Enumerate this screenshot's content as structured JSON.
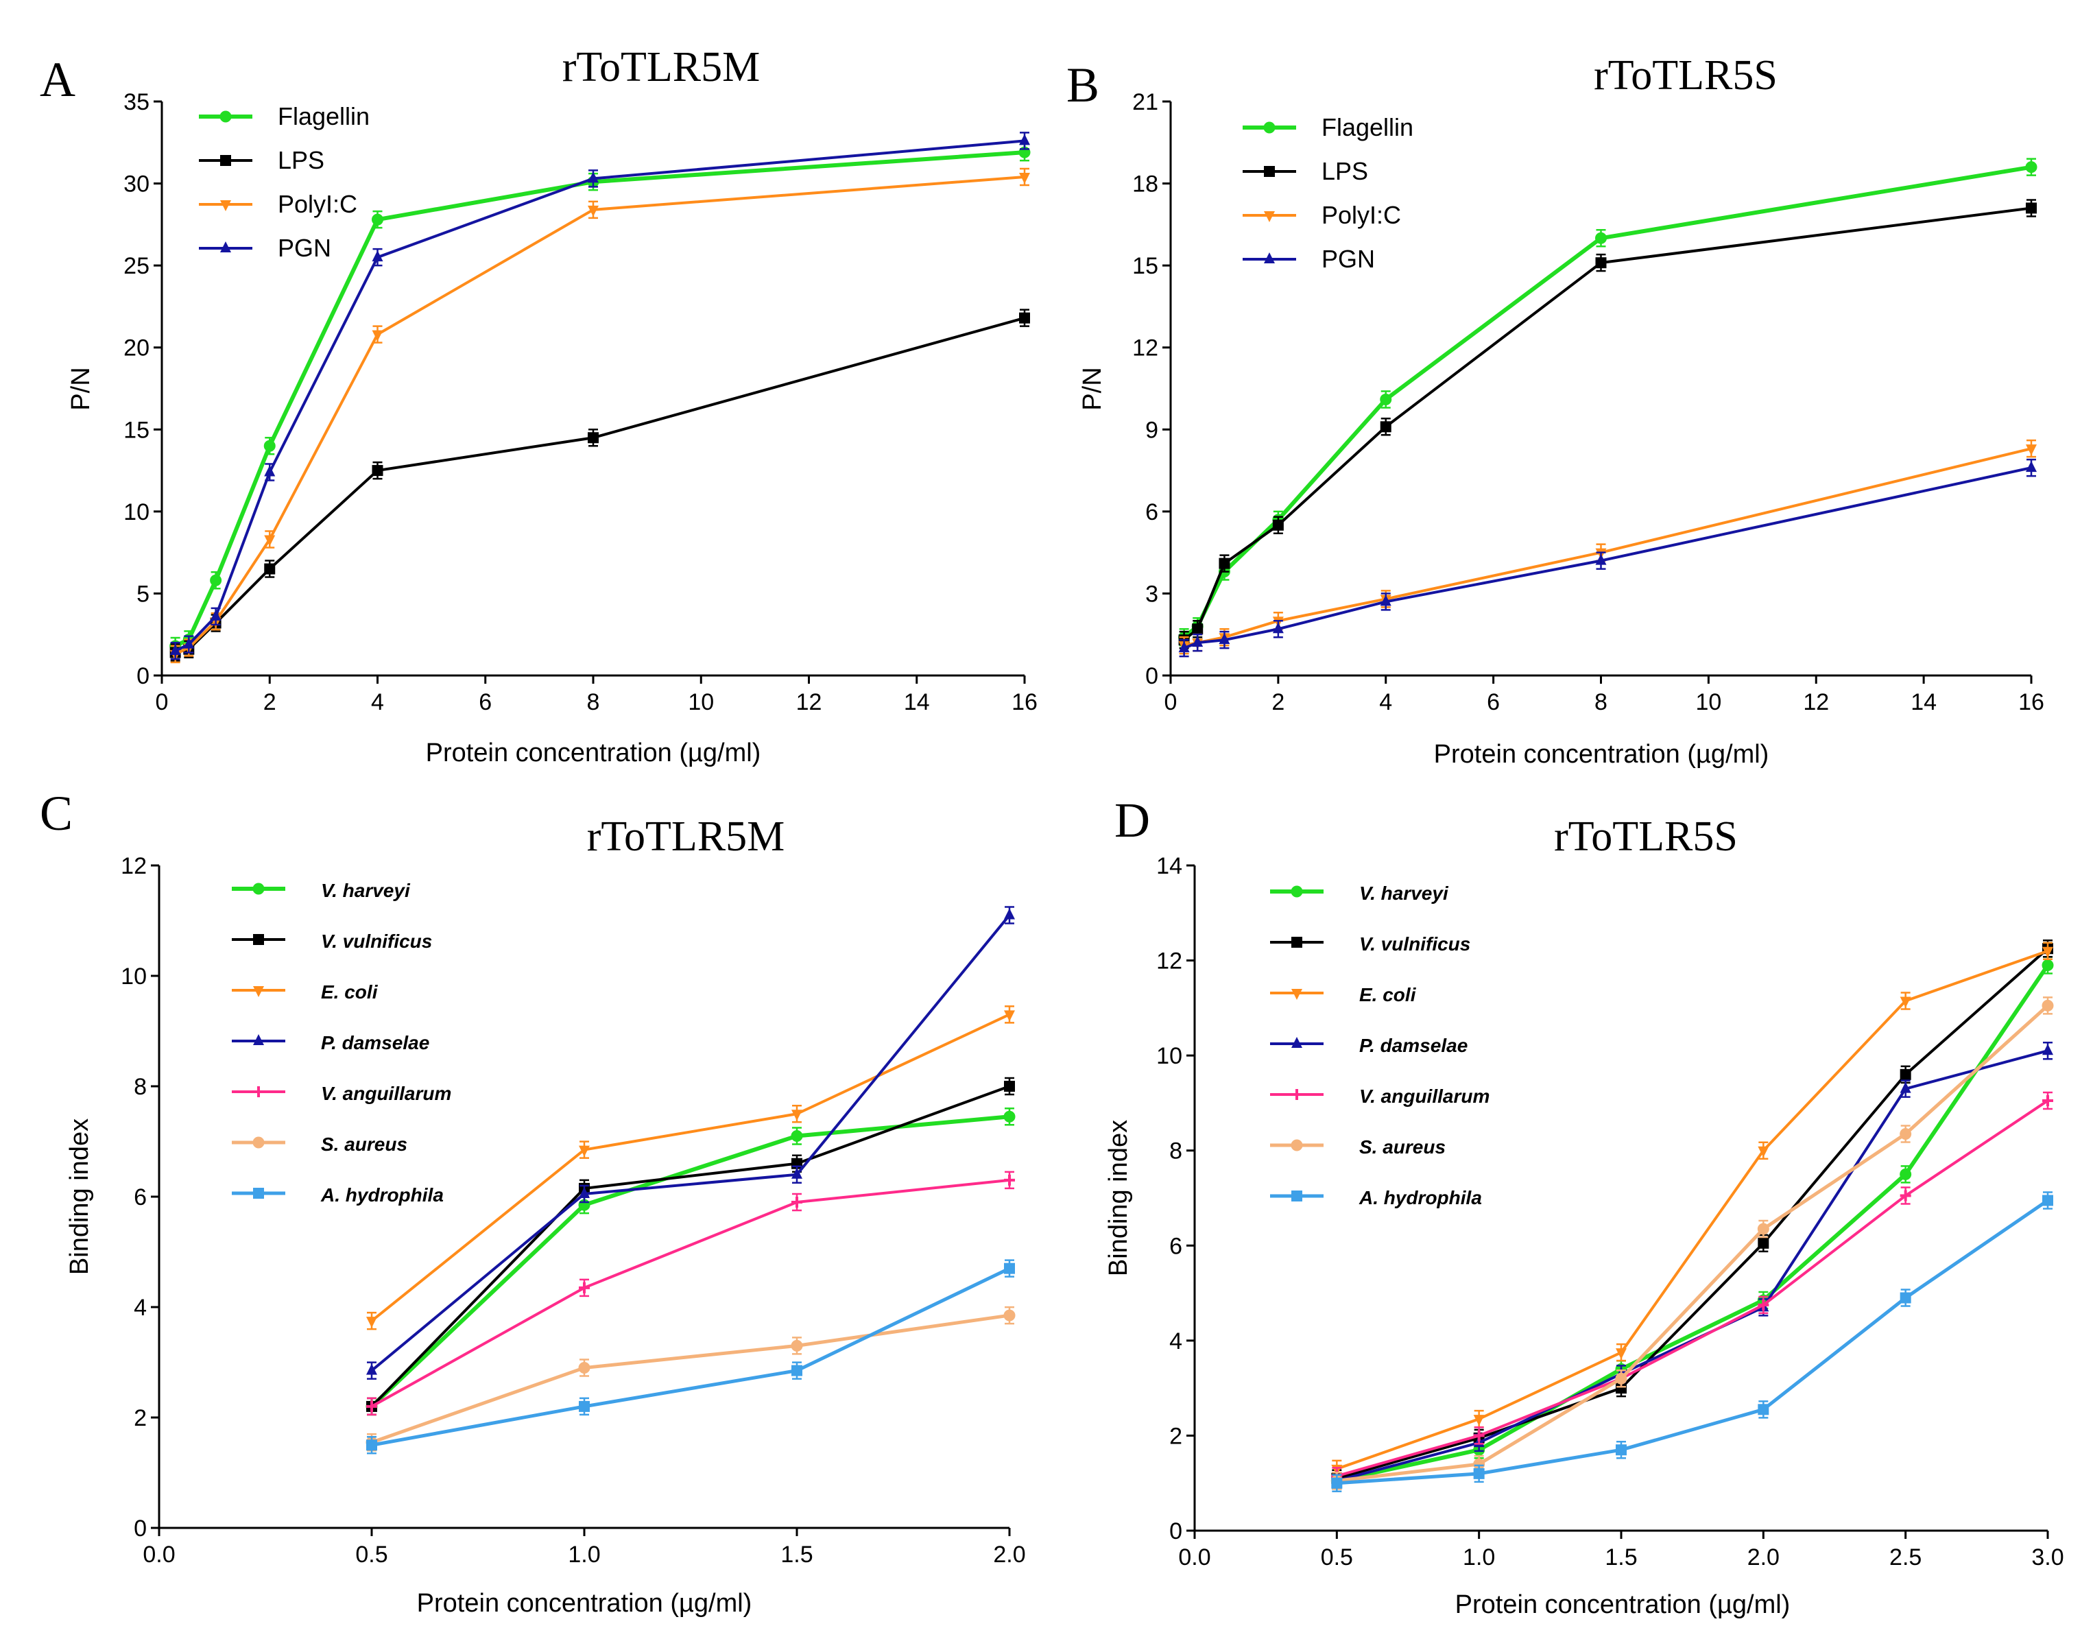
{
  "panels": [
    {
      "letter": "A",
      "title": "rToTLR5M",
      "xlabel": "Protein concentration (µg/ml)",
      "ylabel": "P/N",
      "xlim": [
        0,
        16
      ],
      "ylim": [
        0,
        35
      ],
      "xticks": [
        0,
        2,
        4,
        6,
        8,
        10,
        12,
        14,
        16
      ],
      "xtick_labels": [
        "0",
        "2",
        "4",
        "6",
        "8",
        "10",
        "12",
        "14",
        "16"
      ],
      "yticks": [
        0,
        5,
        10,
        15,
        20,
        25,
        30,
        35
      ],
      "ytick_labels": [
        "0",
        "5",
        "10",
        "15",
        "20",
        "25",
        "30",
        "35"
      ],
      "legend_style": "normal",
      "series": [
        {
          "name": "Flagellin",
          "color": "#22dd22",
          "marker": "circle",
          "width": 6,
          "x": [
            0.25,
            0.5,
            1,
            2,
            4,
            8,
            16
          ],
          "y": [
            1.8,
            2.2,
            5.8,
            14.0,
            27.8,
            30.1,
            31.9
          ]
        },
        {
          "name": "LPS",
          "color": "#000000",
          "marker": "square",
          "width": 4,
          "x": [
            0.25,
            0.5,
            1,
            2,
            4,
            8,
            16
          ],
          "y": [
            1.4,
            1.6,
            3.2,
            6.5,
            12.5,
            14.5,
            21.8
          ]
        },
        {
          "name": "PolyI:C",
          "color": "#ff8c1a",
          "marker": "tri-down",
          "width": 4,
          "x": [
            0.25,
            0.5,
            1,
            2,
            4,
            8,
            16
          ],
          "y": [
            1.3,
            1.7,
            3.3,
            8.3,
            20.8,
            28.4,
            30.4
          ]
        },
        {
          "name": "PGN",
          "color": "#1414a0",
          "marker": "tri-up",
          "width": 4,
          "x": [
            0.25,
            0.5,
            1,
            2,
            4,
            8,
            16
          ],
          "y": [
            1.5,
            1.9,
            3.6,
            12.4,
            25.5,
            30.3,
            32.6
          ]
        }
      ]
    },
    {
      "letter": "B",
      "title": "rToTLR5S",
      "xlabel": "Protein concentration (µg/ml)",
      "ylabel": "P/N",
      "xlim": [
        0,
        16
      ],
      "ylim": [
        0,
        21
      ],
      "xticks": [
        0,
        2,
        4,
        6,
        8,
        10,
        12,
        14,
        16
      ],
      "xtick_labels": [
        "0",
        "2",
        "4",
        "6",
        "8",
        "10",
        "12",
        "14",
        "16"
      ],
      "yticks": [
        0,
        3,
        6,
        9,
        12,
        15,
        18,
        21
      ],
      "ytick_labels": [
        "0",
        "3",
        "6",
        "9",
        "12",
        "15",
        "18",
        "21"
      ],
      "legend_style": "normal",
      "series": [
        {
          "name": "Flagellin",
          "color": "#22dd22",
          "marker": "circle",
          "width": 6,
          "x": [
            0.25,
            0.5,
            1,
            2,
            4,
            8,
            16
          ],
          "y": [
            1.4,
            1.8,
            3.8,
            5.7,
            10.1,
            16.0,
            18.6
          ]
        },
        {
          "name": "LPS",
          "color": "#000000",
          "marker": "square",
          "width": 4,
          "x": [
            0.25,
            0.5,
            1,
            2,
            4,
            8,
            16
          ],
          "y": [
            1.3,
            1.7,
            4.1,
            5.5,
            9.1,
            15.1,
            17.1
          ]
        },
        {
          "name": "PolyI:C",
          "color": "#ff8c1a",
          "marker": "tri-down",
          "width": 4,
          "x": [
            0.25,
            0.5,
            1,
            2,
            4,
            8,
            16
          ],
          "y": [
            1.1,
            1.2,
            1.4,
            2.0,
            2.8,
            4.5,
            8.3
          ]
        },
        {
          "name": "PGN",
          "color": "#1414a0",
          "marker": "tri-up",
          "width": 4,
          "x": [
            0.25,
            0.5,
            1,
            2,
            4,
            8,
            16
          ],
          "y": [
            1.0,
            1.2,
            1.3,
            1.7,
            2.7,
            4.2,
            7.6
          ]
        }
      ]
    },
    {
      "letter": "C",
      "title": "rToTLR5M",
      "xlabel": "Protein concentration (µg/ml)",
      "ylabel": "Binding index",
      "xlim": [
        0,
        2
      ],
      "ylim": [
        0,
        12
      ],
      "xticks": [
        0,
        0.5,
        1,
        1.5,
        2
      ],
      "xtick_labels": [
        "0.0",
        "0.5",
        "1.0",
        "1.5",
        "2.0"
      ],
      "yticks": [
        0,
        2,
        4,
        6,
        8,
        10,
        12
      ],
      "ytick_labels": [
        "0",
        "2",
        "4",
        "6",
        "8",
        "10",
        "12"
      ],
      "legend_style": "italic",
      "series": [
        {
          "name": "V. harveyi",
          "color": "#22dd22",
          "marker": "circle",
          "width": 6,
          "x": [
            0.5,
            1,
            1.5,
            2
          ],
          "y": [
            2.2,
            5.85,
            7.1,
            7.45
          ]
        },
        {
          "name": "V. vulnificus",
          "color": "#000000",
          "marker": "square",
          "width": 4,
          "x": [
            0.5,
            1,
            1.5,
            2
          ],
          "y": [
            2.2,
            6.15,
            6.6,
            8.0
          ]
        },
        {
          "name": "E. coli",
          "color": "#ff8c1a",
          "marker": "tri-down",
          "width": 4,
          "x": [
            0.5,
            1,
            1.5,
            2
          ],
          "y": [
            3.75,
            6.85,
            7.5,
            9.3
          ]
        },
        {
          "name": "P. damselae",
          "color": "#1414a0",
          "marker": "tri-up",
          "width": 4,
          "x": [
            0.5,
            1,
            1.5,
            2
          ],
          "y": [
            2.85,
            6.05,
            6.4,
            11.1
          ]
        },
        {
          "name": "V. anguillarum",
          "color": "#ff2a8a",
          "marker": "plus",
          "width": 4,
          "x": [
            0.5,
            1,
            1.5,
            2
          ],
          "y": [
            2.2,
            4.35,
            5.9,
            6.3
          ]
        },
        {
          "name": "S. aureus",
          "color": "#f5b27a",
          "marker": "circle",
          "width": 5,
          "x": [
            0.5,
            1,
            1.5,
            2
          ],
          "y": [
            1.55,
            2.9,
            3.3,
            3.85
          ]
        },
        {
          "name": "A. hydrophila",
          "color": "#3ea0e8",
          "marker": "square",
          "width": 5,
          "x": [
            0.5,
            1,
            1.5,
            2
          ],
          "y": [
            1.5,
            2.2,
            2.85,
            4.7
          ]
        }
      ]
    },
    {
      "letter": "D",
      "title": "rToTLR5S",
      "xlabel": "Protein concentration (µg/ml)",
      "ylabel": "Binding index",
      "xlim": [
        0,
        3
      ],
      "ylim": [
        0,
        14
      ],
      "xticks": [
        0,
        0.5,
        1,
        1.5,
        2,
        2.5,
        3
      ],
      "xtick_labels": [
        "0.0",
        "0.5",
        "1.0",
        "1.5",
        "2.0",
        "2.5",
        "3.0"
      ],
      "yticks": [
        0,
        2,
        4,
        6,
        8,
        10,
        12,
        14
      ],
      "ytick_labels": [
        "0",
        "2",
        "4",
        "6",
        "8",
        "10",
        "12",
        "14"
      ],
      "legend_style": "italic",
      "series": [
        {
          "name": "V. harveyi",
          "color": "#22dd22",
          "marker": "circle",
          "width": 6,
          "x": [
            0.5,
            1,
            1.5,
            2,
            2.5,
            3
          ],
          "y": [
            1.05,
            1.7,
            3.4,
            4.85,
            7.5,
            11.9
          ]
        },
        {
          "name": "V. vulnificus",
          "color": "#000000",
          "marker": "square",
          "width": 4,
          "x": [
            0.5,
            1,
            1.5,
            2,
            2.5,
            3
          ],
          "y": [
            1.1,
            1.95,
            3.0,
            6.05,
            9.6,
            12.25
          ]
        },
        {
          "name": "E. coli",
          "color": "#ff8c1a",
          "marker": "tri-down",
          "width": 4,
          "x": [
            0.5,
            1,
            1.5,
            2,
            2.5,
            3
          ],
          "y": [
            1.3,
            2.35,
            3.75,
            8.0,
            11.15,
            12.2
          ]
        },
        {
          "name": "P. damselae",
          "color": "#1414a0",
          "marker": "tri-up",
          "width": 4,
          "x": [
            0.5,
            1,
            1.5,
            2,
            2.5,
            3
          ],
          "y": [
            1.05,
            1.85,
            3.3,
            4.7,
            9.3,
            10.1
          ]
        },
        {
          "name": "V. anguillarum",
          "color": "#ff2a8a",
          "marker": "plus",
          "width": 4,
          "x": [
            0.5,
            1,
            1.5,
            2,
            2.5,
            3
          ],
          "y": [
            1.15,
            2.0,
            3.2,
            4.75,
            7.05,
            9.05
          ]
        },
        {
          "name": "S. aureus",
          "color": "#f5b27a",
          "marker": "circle",
          "width": 5,
          "x": [
            0.5,
            1,
            1.5,
            2,
            2.5,
            3
          ],
          "y": [
            1.05,
            1.4,
            3.2,
            6.35,
            8.35,
            11.05
          ]
        },
        {
          "name": "A. hydrophila",
          "color": "#3ea0e8",
          "marker": "square",
          "width": 5,
          "x": [
            0.5,
            1,
            1.5,
            2,
            2.5,
            3
          ],
          "y": [
            1.0,
            1.2,
            1.7,
            2.55,
            4.9,
            6.95
          ]
        }
      ]
    }
  ],
  "chart_data": [
    {
      "type": "line",
      "title": "rToTLR5M",
      "xlabel": "Protein concentration (µg/ml)",
      "ylabel": "P/N",
      "xlim": [
        0,
        16
      ],
      "ylim": [
        0,
        35
      ],
      "x": [
        0.25,
        0.5,
        1,
        2,
        4,
        8,
        16
      ],
      "series": [
        {
          "name": "Flagellin",
          "values": [
            1.8,
            2.2,
            5.8,
            14.0,
            27.8,
            30.1,
            31.9
          ]
        },
        {
          "name": "LPS",
          "values": [
            1.4,
            1.6,
            3.2,
            6.5,
            12.5,
            14.5,
            21.8
          ]
        },
        {
          "name": "PolyI:C",
          "values": [
            1.3,
            1.7,
            3.3,
            8.3,
            20.8,
            28.4,
            30.4
          ]
        },
        {
          "name": "PGN",
          "values": [
            1.5,
            1.9,
            3.6,
            12.4,
            25.5,
            30.3,
            32.6
          ]
        }
      ]
    },
    {
      "type": "line",
      "title": "rToTLR5S",
      "xlabel": "Protein concentration (µg/ml)",
      "ylabel": "P/N",
      "xlim": [
        0,
        16
      ],
      "ylim": [
        0,
        21
      ],
      "x": [
        0.25,
        0.5,
        1,
        2,
        4,
        8,
        16
      ],
      "series": [
        {
          "name": "Flagellin",
          "values": [
            1.4,
            1.8,
            3.8,
            5.7,
            10.1,
            16.0,
            18.6
          ]
        },
        {
          "name": "LPS",
          "values": [
            1.3,
            1.7,
            4.1,
            5.5,
            9.1,
            15.1,
            17.1
          ]
        },
        {
          "name": "PolyI:C",
          "values": [
            1.1,
            1.2,
            1.4,
            2.0,
            2.8,
            4.5,
            8.3
          ]
        },
        {
          "name": "PGN",
          "values": [
            1.0,
            1.2,
            1.3,
            1.7,
            2.7,
            4.2,
            7.6
          ]
        }
      ]
    },
    {
      "type": "line",
      "title": "rToTLR5M",
      "xlabel": "Protein concentration (µg/ml)",
      "ylabel": "Binding index",
      "xlim": [
        0,
        2
      ],
      "ylim": [
        0,
        12
      ],
      "x": [
        0.5,
        1,
        1.5,
        2
      ],
      "series": [
        {
          "name": "V. harveyi",
          "values": [
            2.2,
            5.85,
            7.1,
            7.45
          ]
        },
        {
          "name": "V. vulnificus",
          "values": [
            2.2,
            6.15,
            6.6,
            8.0
          ]
        },
        {
          "name": "E. coli",
          "values": [
            3.75,
            6.85,
            7.5,
            9.3
          ]
        },
        {
          "name": "P. damselae",
          "values": [
            2.85,
            6.05,
            6.4,
            11.1
          ]
        },
        {
          "name": "V. anguillarum",
          "values": [
            2.2,
            4.35,
            5.9,
            6.3
          ]
        },
        {
          "name": "S. aureus",
          "values": [
            1.55,
            2.9,
            3.3,
            3.85
          ]
        },
        {
          "name": "A. hydrophila",
          "values": [
            1.5,
            2.2,
            2.85,
            4.7
          ]
        }
      ]
    },
    {
      "type": "line",
      "title": "rToTLR5S",
      "xlabel": "Protein concentration (µg/ml)",
      "ylabel": "Binding index",
      "xlim": [
        0,
        3
      ],
      "ylim": [
        0,
        14
      ],
      "x": [
        0.5,
        1,
        1.5,
        2,
        2.5,
        3
      ],
      "series": [
        {
          "name": "V. harveyi",
          "values": [
            1.05,
            1.7,
            3.4,
            4.85,
            7.5,
            11.9
          ]
        },
        {
          "name": "V. vulnificus",
          "values": [
            1.1,
            1.95,
            3.0,
            6.05,
            9.6,
            12.25
          ]
        },
        {
          "name": "E. coli",
          "values": [
            1.3,
            2.35,
            3.75,
            8.0,
            11.15,
            12.2
          ]
        },
        {
          "name": "P. damselae",
          "values": [
            1.05,
            1.85,
            3.3,
            4.7,
            9.3,
            10.1
          ]
        },
        {
          "name": "V. anguillarum",
          "values": [
            1.15,
            2.0,
            3.2,
            4.75,
            7.05,
            9.05
          ]
        },
        {
          "name": "S. aureus",
          "values": [
            1.05,
            1.4,
            3.2,
            6.35,
            8.35,
            11.05
          ]
        },
        {
          "name": "A. hydrophila",
          "values": [
            1.0,
            1.2,
            1.7,
            2.55,
            4.9,
            6.95
          ]
        }
      ]
    }
  ]
}
